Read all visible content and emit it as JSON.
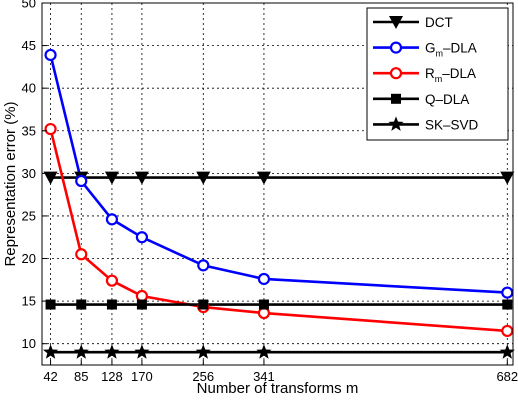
{
  "chart_data": {
    "type": "line",
    "xlabel": "Number of transforms m",
    "ylabel": "Representation error (%)",
    "xlim": [
      30,
      690
    ],
    "ylim": [
      7.5,
      50
    ],
    "x": [
      42,
      85,
      128,
      170,
      256,
      341,
      682
    ],
    "xticks": [
      42,
      85,
      128,
      170,
      256,
      341,
      682
    ],
    "yticks": [
      10,
      15,
      20,
      25,
      30,
      35,
      40,
      45,
      50
    ],
    "grid": true,
    "legend_position": "top-right",
    "series": [
      {
        "name": "DCT",
        "label_main": "DCT",
        "label_sub": "",
        "label_rest": "",
        "color": "#000000",
        "marker": "triangle-down",
        "values": [
          29.5,
          29.5,
          29.5,
          29.5,
          29.5,
          29.5,
          29.5
        ]
      },
      {
        "name": "Gm-DLA",
        "label_main": "G",
        "label_sub": "m",
        "label_rest": "–DLA",
        "color": "#0000ff",
        "marker": "circle",
        "values": [
          43.9,
          29.1,
          24.6,
          22.5,
          19.2,
          17.6,
          16.0
        ]
      },
      {
        "name": "Rm-DLA",
        "label_main": "R",
        "label_sub": "m",
        "label_rest": "–DLA",
        "color": "#ff0000",
        "marker": "circle",
        "values": [
          35.2,
          20.5,
          17.4,
          15.6,
          14.3,
          13.6,
          11.5
        ]
      },
      {
        "name": "Q-DLA",
        "label_main": "Q–DLA",
        "label_sub": "",
        "label_rest": "",
        "color": "#000000",
        "marker": "square",
        "values": [
          14.6,
          14.6,
          14.6,
          14.6,
          14.6,
          14.6,
          14.6
        ]
      },
      {
        "name": "SK-SVD",
        "label_main": "SK–SVD",
        "label_sub": "",
        "label_rest": "",
        "color": "#000000",
        "marker": "star",
        "values": [
          9.0,
          9.0,
          9.0,
          9.0,
          9.0,
          9.0,
          9.0
        ]
      }
    ]
  }
}
